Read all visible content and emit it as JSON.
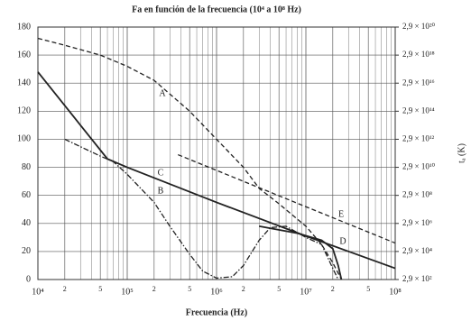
{
  "chart_data": {
    "type": "line",
    "title": "Fa en función de la frecuencia (10⁴ a 10⁸ Hz)",
    "xlabel": "Frecuencia (Hz)",
    "y2label": "tₐ (K)",
    "xscale": "log",
    "xlim": [
      10000,
      100000000
    ],
    "xticks": [
      {
        "value": 10000,
        "label": "10⁴"
      },
      {
        "value": 20000,
        "label": "2"
      },
      {
        "value": 50000,
        "label": "5"
      },
      {
        "value": 100000,
        "label": "10⁵"
      },
      {
        "value": 200000,
        "label": "2"
      },
      {
        "value": 500000,
        "label": "5"
      },
      {
        "value": 1000000,
        "label": "10⁶"
      },
      {
        "value": 2000000,
        "label": "2"
      },
      {
        "value": 5000000,
        "label": "5"
      },
      {
        "value": 10000000,
        "label": "10⁷"
      },
      {
        "value": 20000000,
        "label": "2"
      },
      {
        "value": 50000000,
        "label": "5"
      },
      {
        "value": 100000000,
        "label": "10⁸"
      }
    ],
    "ylim": [
      0,
      180
    ],
    "yticks": [
      0,
      20,
      40,
      60,
      80,
      100,
      120,
      140,
      160,
      180
    ],
    "y2lim": [
      0,
      180
    ],
    "y2ticks": [
      {
        "value": 0,
        "label": "2,9 × 10²"
      },
      {
        "value": 20,
        "label": "2,9 × 10⁴"
      },
      {
        "value": 40,
        "label": "2,9 × 10⁶"
      },
      {
        "value": 60,
        "label": "2,9 × 10⁸"
      },
      {
        "value": 80,
        "label": "2,9 × 10¹⁰"
      },
      {
        "value": 100,
        "label": "2,9 × 10¹²"
      },
      {
        "value": 120,
        "label": "2,9 × 10¹⁴"
      },
      {
        "value": 140,
        "label": "2,9 × 10¹⁶"
      },
      {
        "value": 160,
        "label": "2,9 × 10¹⁸"
      },
      {
        "value": 180,
        "label": "2,9 × 10²⁰"
      }
    ],
    "grid": true,
    "minor_grid": true,
    "series": [
      {
        "name": "A",
        "color": "#222",
        "dash": "dashed",
        "x": [
          10000,
          20000,
          50000,
          100000,
          200000,
          500000,
          1000000,
          2000000,
          3000000,
          5000000,
          10000000,
          15000000,
          20000000,
          25000000
        ],
        "values": [
          172,
          167,
          160,
          152,
          142,
          120,
          100,
          80,
          65,
          54,
          38,
          25,
          12,
          0
        ]
      },
      {
        "name": "B",
        "color": "#222",
        "dash": "dashdot",
        "x": [
          20000,
          50000,
          70000,
          100000,
          200000,
          300000,
          500000,
          700000,
          1000000,
          1500000,
          2000000,
          3000000,
          4000000,
          6000000,
          10000000,
          15000000,
          20000000,
          23000000
        ],
        "values": [
          100,
          88,
          84,
          75,
          55,
          38,
          18,
          6,
          1,
          2,
          10,
          28,
          37,
          38,
          30,
          25,
          8,
          0
        ]
      },
      {
        "name": "C",
        "color": "#222",
        "dash": "solid",
        "x": [
          10000,
          30000,
          60000,
          100000,
          1000000,
          10000000,
          100000000
        ],
        "values": [
          148,
          110,
          86,
          80,
          55,
          31,
          8
        ]
      },
      {
        "name": "D",
        "color": "#222",
        "dash": "solid",
        "x": [
          3000000,
          8000000,
          15000000,
          20000000,
          23000000,
          25000000
        ],
        "values": [
          38,
          33,
          28,
          22,
          10,
          0
        ]
      },
      {
        "name": "E",
        "color": "#222",
        "dash": "dashed",
        "x": [
          370000,
          100000000
        ],
        "values": [
          89,
          26
        ]
      }
    ]
  }
}
